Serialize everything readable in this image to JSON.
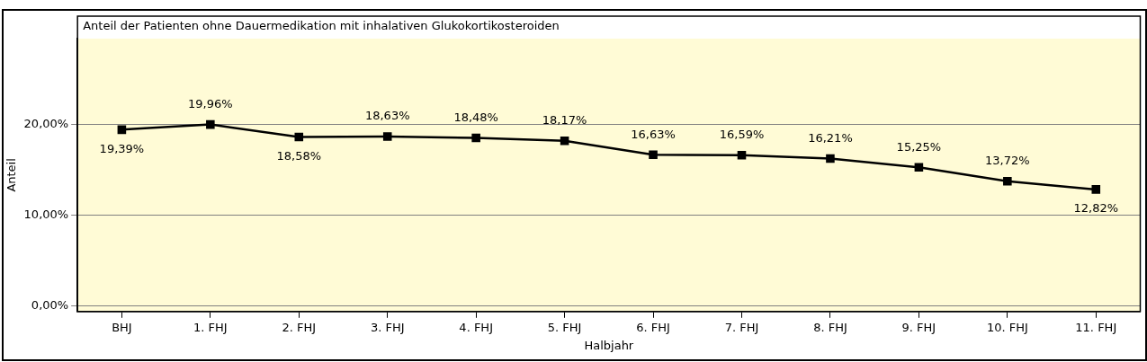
{
  "chart_data": {
    "type": "line",
    "title": "Anteil der Patienten ohne Dauermedikation mit inhalativen Glukokortikosteroiden",
    "xlabel": "Halbjahr",
    "ylabel": "Anteil",
    "categories": [
      "BHJ",
      "1. FHJ",
      "2. FHJ",
      "3. FHJ",
      "4. FHJ",
      "5. FHJ",
      "6. FHJ",
      "7. FHJ",
      "8. FHJ",
      "9. FHJ",
      "10. FHJ",
      "11. FHJ"
    ],
    "series": [
      {
        "color": "#000000",
        "values": [
          19.39,
          19.96,
          18.58,
          18.63,
          18.48,
          18.17,
          16.63,
          16.59,
          16.21,
          15.25,
          13.72,
          12.82
        ],
        "value_labels": [
          "19,39%",
          "19,96%",
          "18,58%",
          "18,63%",
          "18,48%",
          "18,17%",
          "16,63%",
          "16,59%",
          "16,21%",
          "15,25%",
          "13,72%",
          "12,82%"
        ]
      }
    ],
    "ylim": [
      -0.6,
      29.4
    ],
    "yticks": [
      {
        "value": 0,
        "label": "0,00%"
      },
      {
        "value": 10,
        "label": "10,00%"
      },
      {
        "value": 20,
        "label": "20,00%"
      }
    ],
    "grid": "y",
    "legend": false,
    "marker": "square",
    "line_style": "solid"
  }
}
